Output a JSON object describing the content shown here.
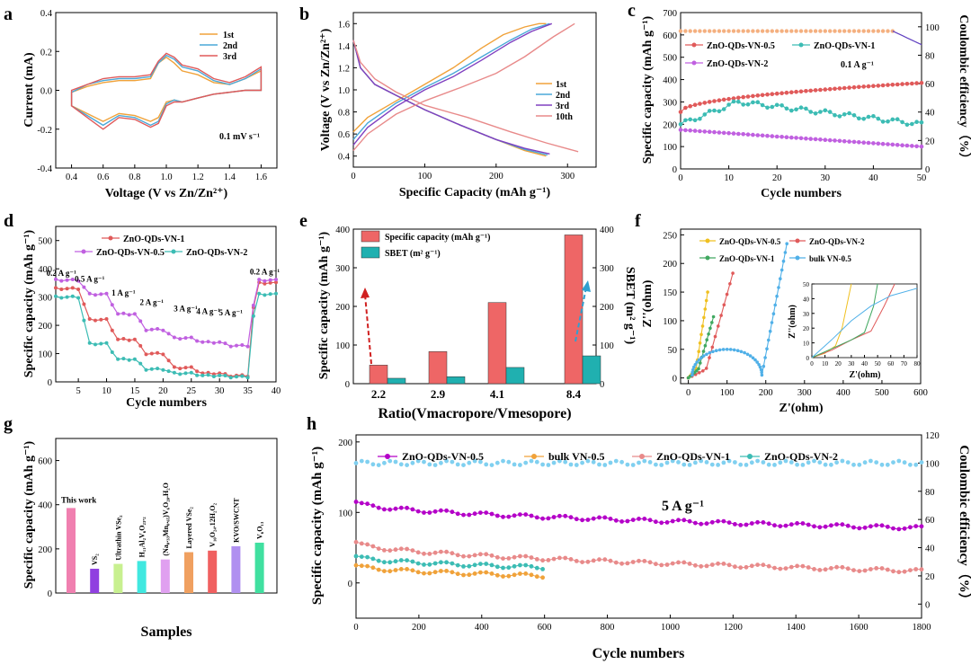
{
  "colors": {
    "orange": "#f0a23a",
    "blue": "#4aa8d8",
    "red": "#e05a5a",
    "pink": "#e88a8a",
    "purple": "#c060e0",
    "magenta": "#b400c8",
    "cyan": "#3cbcb4",
    "peach": "#f4b080",
    "lightblue": "#80d0f0",
    "teal": "#2aa6a6",
    "yellow": "#f0c020",
    "green": "#40a860",
    "sky": "#50b0e8"
  },
  "panels": [
    {
      "label": "a",
      "xlabel": "Voltage (V vs Zn/Zn²⁺)",
      "ylabel": "Current (mA)",
      "annot": "0.1 mV s⁻¹",
      "xticks": [
        "0.4",
        "0.6",
        "0.8",
        "1.0",
        "1.2",
        "1.4",
        "1.6"
      ],
      "yticks": [
        "0.4",
        "0.2",
        "0.0",
        "-0.2",
        "-0.4"
      ],
      "legend": [
        "1st",
        "2nd",
        "3rd"
      ]
    },
    {
      "label": "b",
      "xlabel": "Specific Capacity (mAh g⁻¹)",
      "ylabel": "Voltage (V vs Zn/Zn²⁺)",
      "xticks": [
        "0",
        "100",
        "200",
        "300"
      ],
      "yticks": [
        "0.4",
        "0.6",
        "0.8",
        "1.0",
        "1.2",
        "1.4",
        "1.6"
      ],
      "legend": [
        "1st",
        "2nd",
        "3rd",
        "10th"
      ]
    },
    {
      "label": "c",
      "xlabel": "Cycle numbers",
      "ylabel": "Specific capacity (mAh g⁻¹)",
      "y2label": "Coulombic efficiency（%）",
      "annot": "0.1 A g⁻¹",
      "xticks": [
        "0",
        "10",
        "20",
        "30",
        "40",
        "50"
      ],
      "yticks": [
        "0",
        "100",
        "200",
        "300",
        "400",
        "500",
        "600",
        "700"
      ],
      "y2ticks": [
        "0",
        "20",
        "40",
        "60",
        "80",
        "100"
      ],
      "legend": [
        "ZnO-QDs-VN-0.5",
        "ZnO-QDs-VN-1",
        "ZnO-QDs-VN-2"
      ]
    },
    {
      "label": "d",
      "xlabel": "Cycle numbers",
      "ylabel": "Specific capacity (mAh g⁻¹)",
      "xticks": [
        "5",
        "10",
        "15",
        "20",
        "25",
        "30",
        "35",
        "40"
      ],
      "yticks": [
        "0",
        "100",
        "200",
        "300",
        "400",
        "500"
      ],
      "legend": [
        "ZnO-QDs-VN-1",
        "ZnO-QDs-VN-0.5",
        "ZnO-QDs-VN-2"
      ],
      "rates": [
        "0.2 A g⁻¹",
        "0.5 A g⁻¹",
        "1 A g⁻¹",
        "2 A g⁻¹",
        "3 A g⁻¹",
        "4 A g⁻¹",
        "5 A g⁻¹",
        "0.2 A g⁻¹"
      ]
    },
    {
      "label": "e",
      "xlabel": "Ratio(Vmacropore/Vmesopore)",
      "ylabel": "Specific capacity (mAh g⁻¹)",
      "y2label": "SBET (m² g⁻¹)",
      "xticks": [
        "2.2",
        "2.9",
        "4.1",
        "8.4"
      ],
      "yticks": [
        "0",
        "100",
        "200",
        "300",
        "400"
      ],
      "y2ticks": [
        "0",
        "100",
        "200",
        "300",
        "400"
      ],
      "legend": [
        "Specific capacity (mAh g⁻¹)",
        "SBET (m² g⁻¹)"
      ]
    },
    {
      "label": "f",
      "xlabel": "Z'(ohm)",
      "ylabel": "Z''(ohm)",
      "xticks": [
        "0",
        "100",
        "200",
        "300",
        "400",
        "500",
        "600"
      ],
      "yticks": [
        "0",
        "50",
        "100",
        "150",
        "200",
        "250"
      ],
      "legend": [
        "ZnO-QDs-VN-0.5",
        "ZnO-QDs-VN-2",
        "ZnO-QDs-VN-1",
        "bulk VN-0.5"
      ],
      "inset_xlabel": "Z'(ohm)",
      "inset_ylabel": "Z''(ohm)",
      "inset_xticks": [
        "0",
        "10",
        "20",
        "30",
        "40",
        "50",
        "60",
        "70",
        "80"
      ],
      "inset_yticks": [
        "0",
        "10",
        "20",
        "30",
        "40",
        "50"
      ]
    },
    {
      "label": "g",
      "xlabel": "Samples",
      "ylabel": "Specific capacity (mAh g⁻¹)",
      "yticks": [
        "0",
        "200",
        "400",
        "600"
      ]
    },
    {
      "label": "h",
      "xlabel": "Cycle numbers",
      "ylabel": "Specific capacity (mAh g⁻¹)",
      "y2label": "Coulombic efficiency（%）",
      "annot": "5 A g⁻¹",
      "xticks": [
        "0",
        "200",
        "400",
        "600",
        "800",
        "1000",
        "1200",
        "1400",
        "1600",
        "1800"
      ],
      "yticks": [
        "0",
        "100",
        "200"
      ],
      "y2ticks": [
        "0",
        "20",
        "40",
        "60",
        "80",
        "100",
        "120"
      ],
      "legend": [
        "ZnO-QDs-VN-0.5",
        "bulk VN-0.5",
        "ZnO-QDs-VN-1",
        "ZnO-QDs-VN-2"
      ]
    }
  ],
  "chart_data": [
    {
      "panel": "a",
      "type": "line",
      "xlim": [
        0.3,
        1.7
      ],
      "ylim": [
        -0.4,
        0.4
      ],
      "series": [
        {
          "name": "1st",
          "color": "#f0a23a",
          "x": [
            0.4,
            0.5,
            0.6,
            0.7,
            0.8,
            0.9,
            0.95,
            1.0,
            1.05,
            1.1,
            1.2,
            1.3,
            1.4,
            1.5,
            1.6,
            1.6,
            1.5,
            1.4,
            1.3,
            1.2,
            1.1,
            1.05,
            1.0,
            0.95,
            0.9,
            0.8,
            0.7,
            0.6,
            0.5,
            0.4
          ],
          "y": [
            -0.08,
            -0.12,
            -0.16,
            -0.12,
            -0.13,
            -0.16,
            -0.14,
            -0.06,
            -0.05,
            -0.06,
            -0.04,
            -0.02,
            -0.01,
            0.0,
            0.0,
            0.1,
            0.06,
            0.03,
            0.04,
            0.08,
            0.1,
            0.14,
            0.17,
            0.14,
            0.06,
            0.05,
            0.05,
            0.04,
            0.02,
            -0.01
          ]
        },
        {
          "name": "2nd",
          "color": "#4aa8d8",
          "x": [
            0.4,
            0.5,
            0.6,
            0.7,
            0.8,
            0.9,
            0.95,
            1.0,
            1.05,
            1.1,
            1.2,
            1.3,
            1.4,
            1.5,
            1.6,
            1.6,
            1.5,
            1.4,
            1.3,
            1.2,
            1.1,
            1.05,
            1.0,
            0.95,
            0.9,
            0.8,
            0.7,
            0.6,
            0.5,
            0.4
          ],
          "y": [
            -0.08,
            -0.13,
            -0.18,
            -0.13,
            -0.14,
            -0.18,
            -0.16,
            -0.07,
            -0.05,
            -0.06,
            -0.04,
            -0.02,
            -0.01,
            0.0,
            0.0,
            0.11,
            0.06,
            0.03,
            0.05,
            0.1,
            0.12,
            0.16,
            0.18,
            0.14,
            0.07,
            0.06,
            0.06,
            0.05,
            0.03,
            -0.01
          ]
        },
        {
          "name": "3rd",
          "color": "#e05a5a",
          "x": [
            0.4,
            0.5,
            0.6,
            0.7,
            0.8,
            0.9,
            0.95,
            1.0,
            1.05,
            1.1,
            1.2,
            1.3,
            1.4,
            1.5,
            1.6,
            1.6,
            1.5,
            1.4,
            1.3,
            1.2,
            1.1,
            1.05,
            1.0,
            0.95,
            0.9,
            0.8,
            0.7,
            0.6,
            0.5,
            0.4
          ],
          "y": [
            -0.08,
            -0.14,
            -0.2,
            -0.14,
            -0.15,
            -0.19,
            -0.17,
            -0.08,
            -0.06,
            -0.06,
            -0.04,
            -0.02,
            -0.01,
            0.0,
            0.0,
            0.12,
            0.07,
            0.04,
            0.06,
            0.11,
            0.13,
            0.17,
            0.19,
            0.15,
            0.08,
            0.07,
            0.07,
            0.06,
            0.03,
            0.0
          ]
        }
      ]
    },
    {
      "panel": "b",
      "type": "line",
      "xlim": [
        0,
        340
      ],
      "ylim": [
        0.3,
        1.7
      ],
      "series": [
        {
          "name": "1st",
          "color": "#f0a23a",
          "x": [
            0,
            20,
            60,
            100,
            140,
            180,
            210,
            240,
            260,
            270,
            0,
            10,
            30,
            60,
            100,
            150,
            200,
            240,
            270
          ],
          "y": [
            0.62,
            0.75,
            0.9,
            1.05,
            1.2,
            1.38,
            1.5,
            1.57,
            1.6,
            1.6,
            1.45,
            1.2,
            1.05,
            0.95,
            0.82,
            0.68,
            0.55,
            0.45,
            0.4
          ],
          "charge_len": 10
        },
        {
          "name": "2nd",
          "color": "#4aa8d8",
          "x": [
            0,
            20,
            60,
            100,
            140,
            180,
            220,
            250,
            275,
            0,
            10,
            30,
            60,
            100,
            150,
            200,
            240,
            272
          ],
          "y": [
            0.55,
            0.7,
            0.88,
            1.02,
            1.15,
            1.3,
            1.45,
            1.55,
            1.6,
            1.45,
            1.2,
            1.05,
            0.95,
            0.82,
            0.68,
            0.55,
            0.46,
            0.41
          ],
          "charge_len": 9
        },
        {
          "name": "3rd",
          "color": "#8040c0",
          "x": [
            0,
            20,
            60,
            100,
            140,
            180,
            220,
            250,
            278,
            0,
            10,
            30,
            60,
            100,
            150,
            200,
            240,
            275
          ],
          "y": [
            0.5,
            0.66,
            0.85,
            1.0,
            1.12,
            1.27,
            1.43,
            1.53,
            1.6,
            1.45,
            1.2,
            1.05,
            0.95,
            0.82,
            0.68,
            0.55,
            0.47,
            0.42
          ],
          "charge_len": 9
        },
        {
          "name": "10th",
          "color": "#e88a8a",
          "x": [
            0,
            20,
            60,
            100,
            150,
            200,
            240,
            280,
            310,
            0,
            10,
            30,
            60,
            100,
            160,
            220,
            270,
            315
          ],
          "y": [
            0.45,
            0.6,
            0.78,
            0.9,
            1.02,
            1.15,
            1.3,
            1.48,
            1.6,
            1.45,
            1.25,
            1.1,
            0.98,
            0.86,
            0.75,
            0.62,
            0.52,
            0.44
          ],
          "charge_len": 9
        }
      ]
    },
    {
      "panel": "c",
      "type": "scatter",
      "xlim": [
        0,
        50
      ],
      "ylim": [
        0,
        700
      ],
      "y2lim": [
        0,
        110
      ],
      "series": [
        {
          "name": "ZnO-QDs-VN-0.5",
          "color": "#e05a5a",
          "y_start": 255,
          "y_end": 385
        },
        {
          "name": "ZnO-QDs-VN-1",
          "color": "#3cbcb4",
          "y_start": 200,
          "y_peak": 300,
          "y_end": 200
        },
        {
          "name": "ZnO-QDs-VN-2",
          "color": "#c060e0",
          "y_start": 175,
          "y_end": 100
        },
        {
          "name": "CE",
          "color": "#f4b080",
          "value": 97
        }
      ]
    },
    {
      "panel": "d",
      "type": "line",
      "xlim": [
        1,
        40
      ],
      "ylim": [
        0,
        500
      ],
      "series": [
        {
          "name": "ZnO-QDs-VN-1",
          "color": "#e05a5a",
          "levels": [
            330,
            220,
            150,
            100,
            50,
            30,
            22,
            350
          ]
        },
        {
          "name": "ZnO-QDs-VN-0.5",
          "color": "#c060e0",
          "levels": [
            360,
            310,
            240,
            185,
            155,
            140,
            128,
            360
          ]
        },
        {
          "name": "ZnO-QDs-VN-2",
          "color": "#3cbcb4",
          "levels": [
            300,
            135,
            80,
            45,
            30,
            22,
            18,
            310
          ]
        }
      ]
    },
    {
      "panel": "e",
      "type": "bar",
      "categories": [
        "2.2",
        "2.9",
        "4.1",
        "8.4"
      ],
      "series": [
        {
          "name": "Specific capacity (mAh g⁻¹)",
          "color": "#ee6666",
          "values": [
            48,
            83,
            210,
            385
          ]
        },
        {
          "name": "SBET (m² g⁻¹)",
          "color": "#20b0b0",
          "values": [
            14,
            18,
            42,
            72
          ]
        }
      ],
      "ylim": [
        0,
        400
      ]
    },
    {
      "panel": "f",
      "type": "line",
      "xlim": [
        -20,
        600
      ],
      "ylim": [
        -10,
        260
      ],
      "series": [
        {
          "name": "ZnO-QDs-VN-0.5",
          "color": "#f0c020",
          "end": [
            50,
            150
          ]
        },
        {
          "name": "ZnO-QDs-VN-2",
          "color": "#e05a5a",
          "end": [
            115,
            183
          ]
        },
        {
          "name": "ZnO-QDs-VN-1",
          "color": "#40a860",
          "end": [
            65,
            107
          ]
        },
        {
          "name": "bulk VN-0.5",
          "color": "#50b0e8",
          "end": [
            255,
            235
          ]
        }
      ]
    },
    {
      "panel": "g",
      "type": "bar",
      "ylim": [
        0,
        700
      ],
      "categories": [
        "This work",
        "VS₂",
        "Ultrathin VSe₂",
        "H₁₁Al₂V₆O₂₃.₂",
        "(Na₀.₃₃Mn₀.₆₅)V₆O₂₀.H₂O",
        "Layered VSe₂",
        "V₁₀O₂₄.12H₂O₂",
        "KVO/SWCNT",
        "V₆O₁₃"
      ],
      "values": [
        385,
        110,
        132,
        145,
        152,
        185,
        192,
        212,
        228
      ],
      "colors": [
        "#f080b0",
        "#9040e0",
        "#c8f090",
        "#40e8e0",
        "#e0a0f0",
        "#f0a060",
        "#f06060",
        "#b090f0",
        "#40e0a0"
      ]
    },
    {
      "panel": "h",
      "type": "scatter",
      "xlim": [
        0,
        1800
      ],
      "ylim": [
        -50,
        210
      ],
      "y2lim": [
        -10,
        120
      ],
      "series": [
        {
          "name": "ZnO-QDs-VN-0.5",
          "color": "#b400c8",
          "y_start": 115,
          "y_end": 78
        },
        {
          "name": "bulk VN-0.5",
          "color": "#f0a23a",
          "y_start": 25,
          "y_end": 10,
          "x_end": 600
        },
        {
          "name": "ZnO-QDs-VN-1",
          "color": "#e88a8a",
          "y_start": 58,
          "y_end": 17
        },
        {
          "name": "ZnO-QDs-VN-2",
          "color": "#3cbcb4",
          "y_start": 38,
          "y_end": 22,
          "x_end": 600
        },
        {
          "name": "CE",
          "color": "#80d0f0",
          "value": 100
        }
      ]
    }
  ]
}
